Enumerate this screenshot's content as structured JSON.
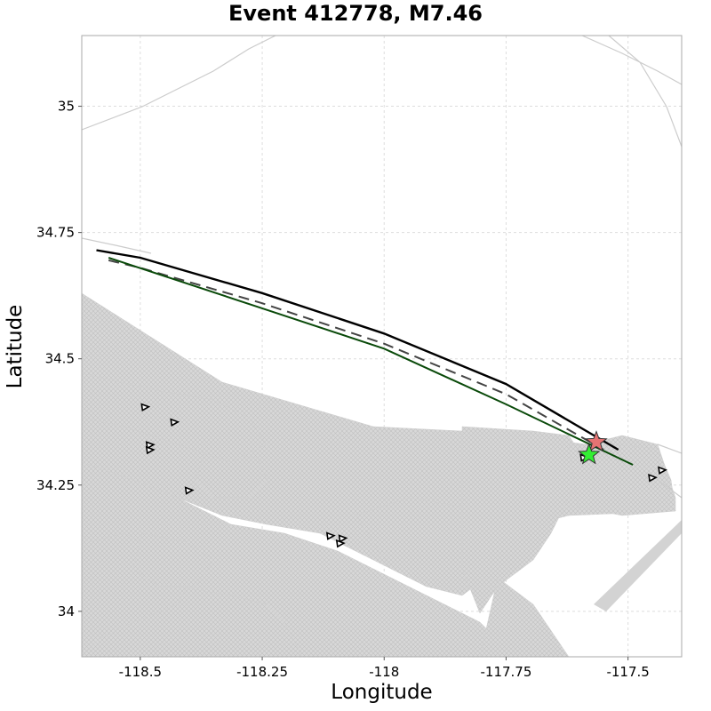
{
  "title": "Event 412778, M7.46",
  "chart_data": {
    "type": "map",
    "xlabel": "Longitude",
    "ylabel": "Latitude",
    "xlim": [
      -118.62,
      -117.39
    ],
    "ylim": [
      33.91,
      35.14
    ],
    "xticks": [
      -118.5,
      -118.25,
      -118,
      -117.75,
      -117.5
    ],
    "xtick_labels": [
      "-118.5",
      "-118.25",
      "-118",
      "-117.75",
      "-117.5"
    ],
    "yticks": [
      34,
      34.25,
      34.5,
      34.75,
      35
    ],
    "ytick_labels": [
      "34",
      "34.25",
      "34.5",
      "34.75",
      "35"
    ],
    "grid": true,
    "colors": {
      "mesh": "#d3d3d3",
      "rupture_trace": "#000000",
      "dashed_trace": "#444444",
      "green_trace": "#0a4a0a",
      "epicenter_red": "#e57373",
      "epicenter_green": "#33ee33"
    },
    "epicenters": [
      {
        "name": "red-star",
        "lon": -117.565,
        "lat": 34.335
      },
      {
        "name": "green-star",
        "lon": -117.58,
        "lat": 34.31
      }
    ],
    "traces": [
      {
        "name": "rupture-black",
        "points": [
          [
            -118.59,
            34.715
          ],
          [
            -118.5,
            34.7
          ],
          [
            -118.25,
            34.63
          ],
          [
            -118,
            34.55
          ],
          [
            -117.75,
            34.45
          ],
          [
            -117.52,
            34.32
          ]
        ]
      },
      {
        "name": "rupture-dashed",
        "points": [
          [
            -118.565,
            34.695
          ],
          [
            -118.5,
            34.68
          ],
          [
            -118.25,
            34.61
          ],
          [
            -118,
            34.53
          ],
          [
            -117.75,
            34.43
          ],
          [
            -117.55,
            34.32
          ]
        ]
      },
      {
        "name": "rupture-green",
        "points": [
          [
            -118.565,
            34.7
          ],
          [
            -118.25,
            34.6
          ],
          [
            -118,
            34.52
          ],
          [
            -117.75,
            34.41
          ],
          [
            -117.49,
            34.29
          ]
        ]
      }
    ],
    "stations": [
      [
        -118.49,
        34.405
      ],
      [
        -118.43,
        34.375
      ],
      [
        -118.48,
        34.33
      ],
      [
        -118.48,
        34.32
      ],
      [
        -118.4,
        34.24
      ],
      [
        -118.11,
        34.15
      ],
      [
        -118.085,
        34.145
      ],
      [
        -118.09,
        34.135
      ],
      [
        -117.59,
        34.305
      ],
      [
        -117.45,
        34.265
      ],
      [
        -117.43,
        34.28
      ]
    ]
  }
}
